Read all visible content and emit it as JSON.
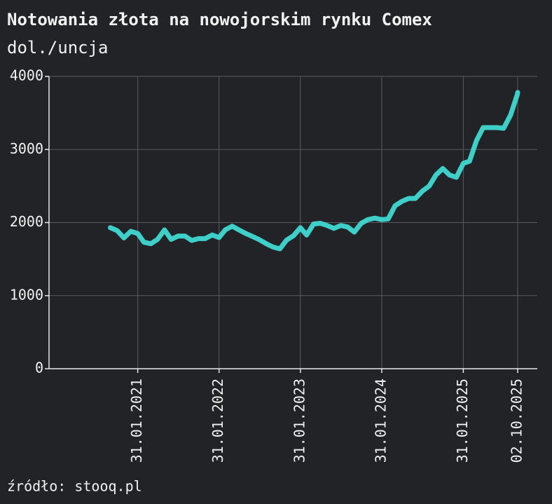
{
  "chart_data": {
    "type": "line",
    "title": "Notowania złota na nowojorskim rynku Comex",
    "subtitle": "dol./uncja",
    "source": "źródło: stooq.pl",
    "x": [
      "2020-09-30",
      "2020-10-31",
      "2020-11-30",
      "2020-12-31",
      "2021-01-31",
      "2021-02-28",
      "2021-03-31",
      "2021-04-30",
      "2021-05-31",
      "2021-06-30",
      "2021-07-31",
      "2021-08-31",
      "2021-09-30",
      "2021-10-31",
      "2021-11-30",
      "2021-12-31",
      "2022-01-31",
      "2022-02-28",
      "2022-03-31",
      "2022-04-30",
      "2022-05-31",
      "2022-06-30",
      "2022-07-31",
      "2022-08-31",
      "2022-09-30",
      "2022-10-31",
      "2022-11-30",
      "2022-12-31",
      "2023-01-31",
      "2023-02-28",
      "2023-03-31",
      "2023-04-30",
      "2023-05-31",
      "2023-06-30",
      "2023-07-31",
      "2023-08-31",
      "2023-09-30",
      "2023-10-31",
      "2023-11-30",
      "2023-12-31",
      "2024-01-31",
      "2024-02-29",
      "2024-03-31",
      "2024-04-30",
      "2024-05-31",
      "2024-06-30",
      "2024-07-31",
      "2024-08-31",
      "2024-09-30",
      "2024-10-31",
      "2024-11-30",
      "2024-12-31",
      "2025-01-31",
      "2025-02-28",
      "2025-03-31",
      "2025-04-30",
      "2025-05-31",
      "2025-06-30",
      "2025-07-31",
      "2025-08-31",
      "2025-09-30",
      "2025-10-02"
    ],
    "series": [
      {
        "name": "Comex",
        "color": "#3ecfc8",
        "values": [
          1930,
          1890,
          1790,
          1880,
          1850,
          1730,
          1710,
          1770,
          1900,
          1770,
          1815,
          1815,
          1755,
          1780,
          1780,
          1830,
          1795,
          1900,
          1950,
          1900,
          1850,
          1810,
          1765,
          1710,
          1665,
          1640,
          1760,
          1820,
          1930,
          1830,
          1980,
          1990,
          1960,
          1920,
          1960,
          1940,
          1870,
          1990,
          2040,
          2060,
          2040,
          2050,
          2230,
          2290,
          2330,
          2330,
          2430,
          2500,
          2650,
          2740,
          2650,
          2620,
          2810,
          2840,
          3120,
          3300,
          3300,
          3300,
          3290,
          3470,
          3750,
          3780
        ]
      }
    ],
    "xlim": [
      "2019-12-30",
      "2025-12-29"
    ],
    "xticks": [
      {
        "value": "2021-01-31",
        "label": "31.01.2021"
      },
      {
        "value": "2022-01-31",
        "label": "31.01.2022"
      },
      {
        "value": "2023-01-31",
        "label": "31.01.2023"
      },
      {
        "value": "2024-01-31",
        "label": "31.01.2024"
      },
      {
        "value": "2025-01-31",
        "label": "31.01.2025"
      },
      {
        "value": "2025-10-02",
        "label": "02.10.2025"
      }
    ],
    "ylim": [
      0,
      4000
    ],
    "yticks": [
      0,
      1000,
      2000,
      3000,
      4000
    ],
    "grid": true
  }
}
